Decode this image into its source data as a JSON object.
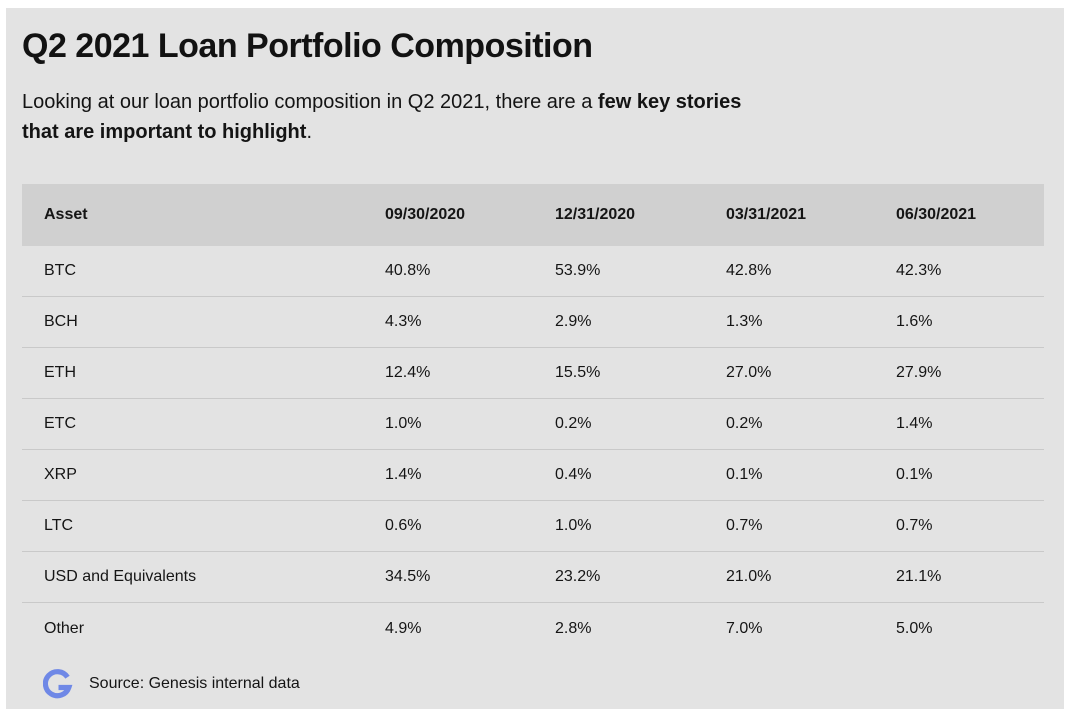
{
  "header": {
    "title": "Q2 2021 Loan Portfolio Composition",
    "intro_part1": "Looking at our loan portfolio composition in Q2 2021, there are a ",
    "intro_bold": "few key stories that are important to highlight",
    "intro_end": "."
  },
  "table": {
    "columns": [
      "Asset",
      "09/30/2020",
      "12/31/2020",
      "03/31/2021",
      "06/30/2021"
    ],
    "rows": [
      [
        "BTC",
        "40.8%",
        "53.9%",
        "42.8%",
        "42.3%"
      ],
      [
        "BCH",
        "4.3%",
        "2.9%",
        "1.3%",
        "1.6%"
      ],
      [
        "ETH",
        "12.4%",
        "15.5%",
        "27.0%",
        "27.9%"
      ],
      [
        "ETC",
        "1.0%",
        "0.2%",
        "0.2%",
        "1.4%"
      ],
      [
        "XRP",
        "1.4%",
        "0.4%",
        "0.1%",
        "0.1%"
      ],
      [
        "LTC",
        "0.6%",
        "1.0%",
        "0.7%",
        "0.7%"
      ],
      [
        "USD and Equivalents",
        "34.5%",
        "23.2%",
        "21.0%",
        "21.1%"
      ],
      [
        "Other",
        "4.9%",
        "2.8%",
        "7.0%",
        "5.0%"
      ]
    ]
  },
  "footer": {
    "logo_icon": "genesis-g-logo",
    "source_text": "Source: Genesis internal data"
  },
  "colors": {
    "panel_background": "#e3e3e3",
    "header_row_background": "#d0d0d0",
    "logo_blue": "#6f88e6"
  }
}
